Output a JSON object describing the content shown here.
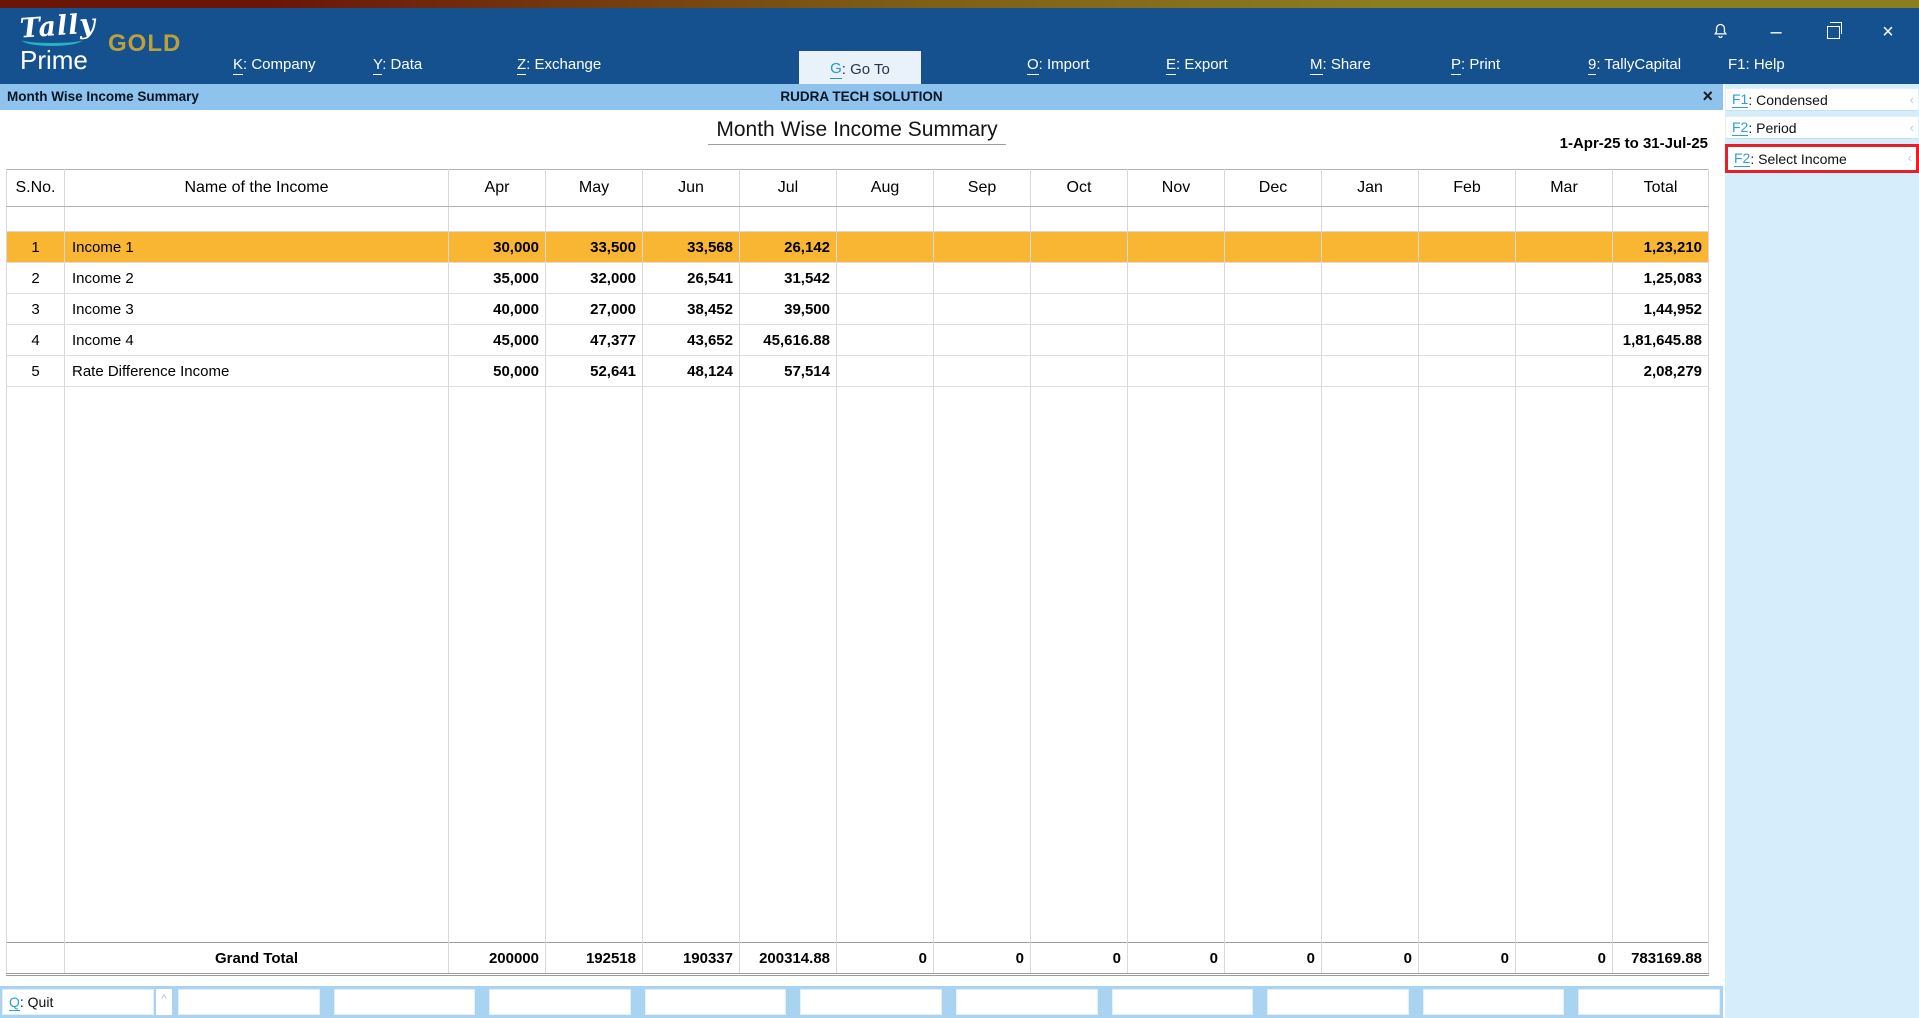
{
  "brand": {
    "logo_line1": "Tally",
    "logo_line2": "Prime",
    "edition": "GOLD"
  },
  "nav": {
    "items": [
      {
        "key": "K",
        "label": ": Company",
        "underline": true,
        "active": false
      },
      {
        "key": "Y",
        "label": ": Data",
        "underline": true,
        "active": false
      },
      {
        "key": "Z",
        "label": ": Exchange",
        "underline": true,
        "active": false
      },
      {
        "key": "G",
        "label": ": Go To",
        "underline": true,
        "active": true
      },
      {
        "key": "O",
        "label": ": Import",
        "underline": true,
        "active": false
      },
      {
        "key": "E",
        "label": ": Export",
        "underline": true,
        "active": false
      },
      {
        "key": "M",
        "label": ": Share",
        "underline": true,
        "active": false
      },
      {
        "key": "P",
        "label": ": Print",
        "underline": true,
        "active": false
      },
      {
        "key": "9",
        "label": ": TallyCapital",
        "underline": true,
        "active": false
      },
      {
        "key": "F1",
        "label": ": Help",
        "underline": false,
        "active": false
      }
    ]
  },
  "window_controls": {
    "minimize": "–",
    "close": "×"
  },
  "titlebar": {
    "left": "Month Wise Income Summary",
    "company": "RUDRA TECH SOLUTION",
    "close": "×"
  },
  "report": {
    "title": "Month Wise Income Summary",
    "period": "1-Apr-25 to 31-Jul-25"
  },
  "table": {
    "columns": [
      "S.No.",
      "Name of the Income",
      "Apr",
      "May",
      "Jun",
      "Jul",
      "Aug",
      "Sep",
      "Oct",
      "Nov",
      "Dec",
      "Jan",
      "Feb",
      "Mar",
      "Total"
    ],
    "rows": [
      {
        "sno": "1",
        "name": "Income 1",
        "values": [
          "30,000",
          "33,500",
          "33,568",
          "26,142",
          "",
          "",
          "",
          "",
          "",
          "",
          "",
          ""
        ],
        "total": "1,23,210",
        "highlight": true
      },
      {
        "sno": "2",
        "name": "Income 2",
        "values": [
          "35,000",
          "32,000",
          "26,541",
          "31,542",
          "",
          "",
          "",
          "",
          "",
          "",
          "",
          ""
        ],
        "total": "1,25,083",
        "highlight": false
      },
      {
        "sno": "3",
        "name": "Income 3",
        "values": [
          "40,000",
          "27,000",
          "38,452",
          "39,500",
          "",
          "",
          "",
          "",
          "",
          "",
          "",
          ""
        ],
        "total": "1,44,952",
        "highlight": false
      },
      {
        "sno": "4",
        "name": "Income 4",
        "values": [
          "45,000",
          "47,377",
          "43,652",
          "45,616.88",
          "",
          "",
          "",
          "",
          "",
          "",
          "",
          ""
        ],
        "total": "1,81,645.88",
        "highlight": false
      },
      {
        "sno": "5",
        "name": "Rate Difference Income",
        "values": [
          "50,000",
          "52,641",
          "48,124",
          "57,514",
          "",
          "",
          "",
          "",
          "",
          "",
          "",
          ""
        ],
        "total": "2,08,279",
        "highlight": false
      }
    ],
    "grand_total": {
      "label": "Grand Total",
      "values": [
        "200000",
        "192518",
        "190337",
        "200314.88",
        "0",
        "0",
        "0",
        "0",
        "0",
        "0",
        "0",
        "0"
      ],
      "total": "783169.88"
    }
  },
  "sidebar": {
    "items": [
      {
        "key": "F1",
        "label": ": Condensed",
        "chevron": "‹",
        "selected": false
      },
      {
        "key": "F2",
        "label": ": Period",
        "chevron": "‹",
        "selected": false
      },
      {
        "key": "F2",
        "label": ": Select Income",
        "chevron": "‹",
        "selected": true
      }
    ]
  },
  "bottombar": {
    "quit_key": "Q",
    "quit_label": ": Quit",
    "caret": "^",
    "empty_slot_count": 10
  }
}
